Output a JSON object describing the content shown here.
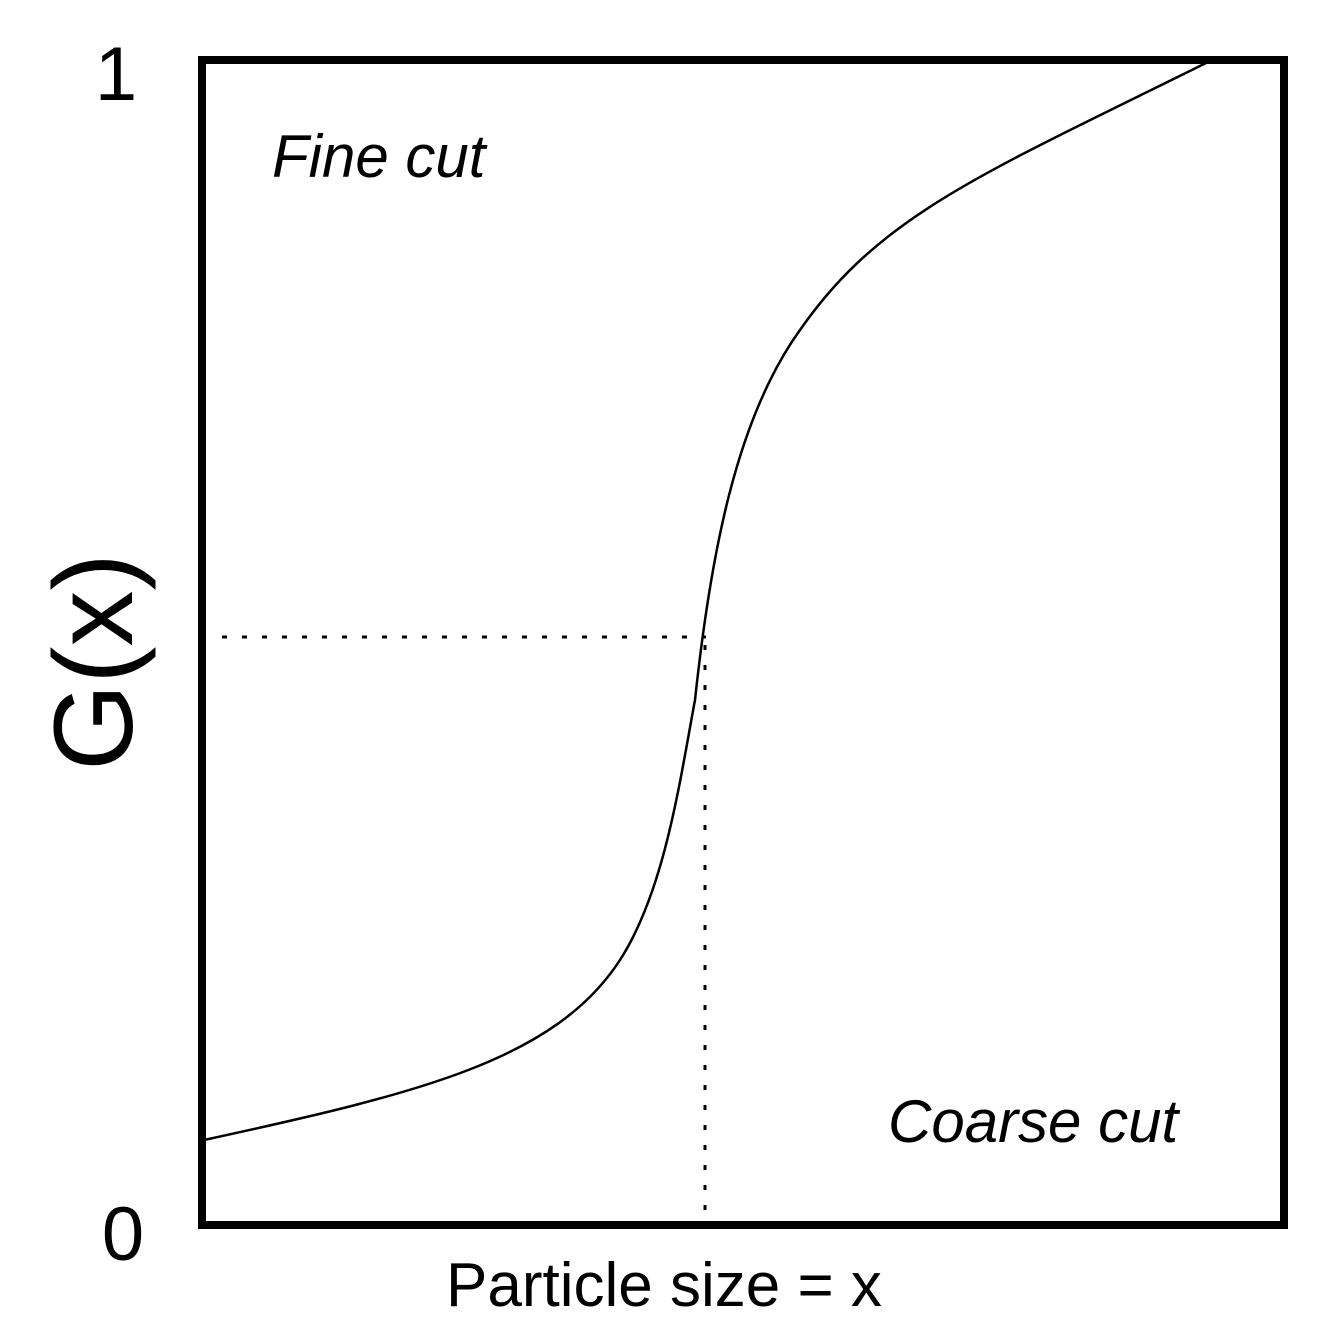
{
  "diagram": {
    "y_axis_label": "G(x)",
    "x_axis_label": "Particle size = x",
    "y_tick_top": "1",
    "y_tick_bottom": "0",
    "annotation_fine": "Fine cut",
    "annotation_coarse": "Coarse cut"
  },
  "colors": {
    "line": "#000000",
    "background": "#ffffff"
  }
}
